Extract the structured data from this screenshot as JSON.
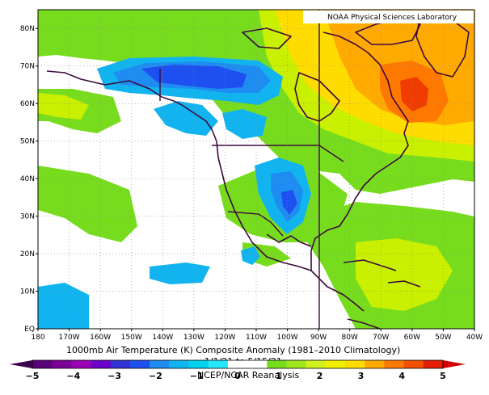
{
  "credit": "NOAA Physical Sciences Laboratory",
  "title": "1000mb Air Temperature (K) Composite Anomaly (1981–2010 Climatology)",
  "date_range": "1/1/21  to 5/15/21",
  "source": "NCEP/NCAR Reanalysis",
  "lat_ticks": [
    "EQ",
    "10N",
    "20N",
    "30N",
    "40N",
    "50N",
    "60N",
    "70N",
    "80N"
  ],
  "lon_ticks": [
    "180",
    "170W",
    "160W",
    "150W",
    "140W",
    "130W",
    "120W",
    "110W",
    "100W",
    "90W",
    "80W",
    "70W",
    "60W",
    "50W",
    "40W"
  ],
  "colorbar": {
    "labels": [
      "−5",
      "−4",
      "−3",
      "−2",
      "−1",
      "0",
      "1",
      "2",
      "3",
      "4",
      "5"
    ],
    "colors": [
      "#5a0078",
      "#7a0096",
      "#9b00b4",
      "#6c00c8",
      "#3232d2",
      "#1e50f0",
      "#1e8cf0",
      "#12b4f0",
      "#00d2f0",
      "#28e6fa",
      "#ffffff",
      "#ffffff",
      "#78dc1e",
      "#a0e61e",
      "#d2f01e",
      "#f0f000",
      "#ffdc00",
      "#ffaa00",
      "#ff7800",
      "#f05000",
      "#e61e00"
    ]
  },
  "map_data": {
    "projection": "equirectangular",
    "lon_range": [
      -180,
      -40
    ],
    "lat_range": [
      0,
      85
    ],
    "variable": "1000mb air temperature composite anomaly (K)",
    "color_colors": {
      "cold_3": "#1e50f0",
      "cold_2": "#1e8cf0",
      "cold_1": "#12b4f0",
      "cold_0": "#28d2f5",
      "warm_0": "#78dc1e",
      "warm_1": "#c8f000",
      "warm_2": "#ffdc00",
      "warm_3": "#ffaa00",
      "warm_4": "#ff7800",
      "warm_5": "#f03c00"
    }
  }
}
